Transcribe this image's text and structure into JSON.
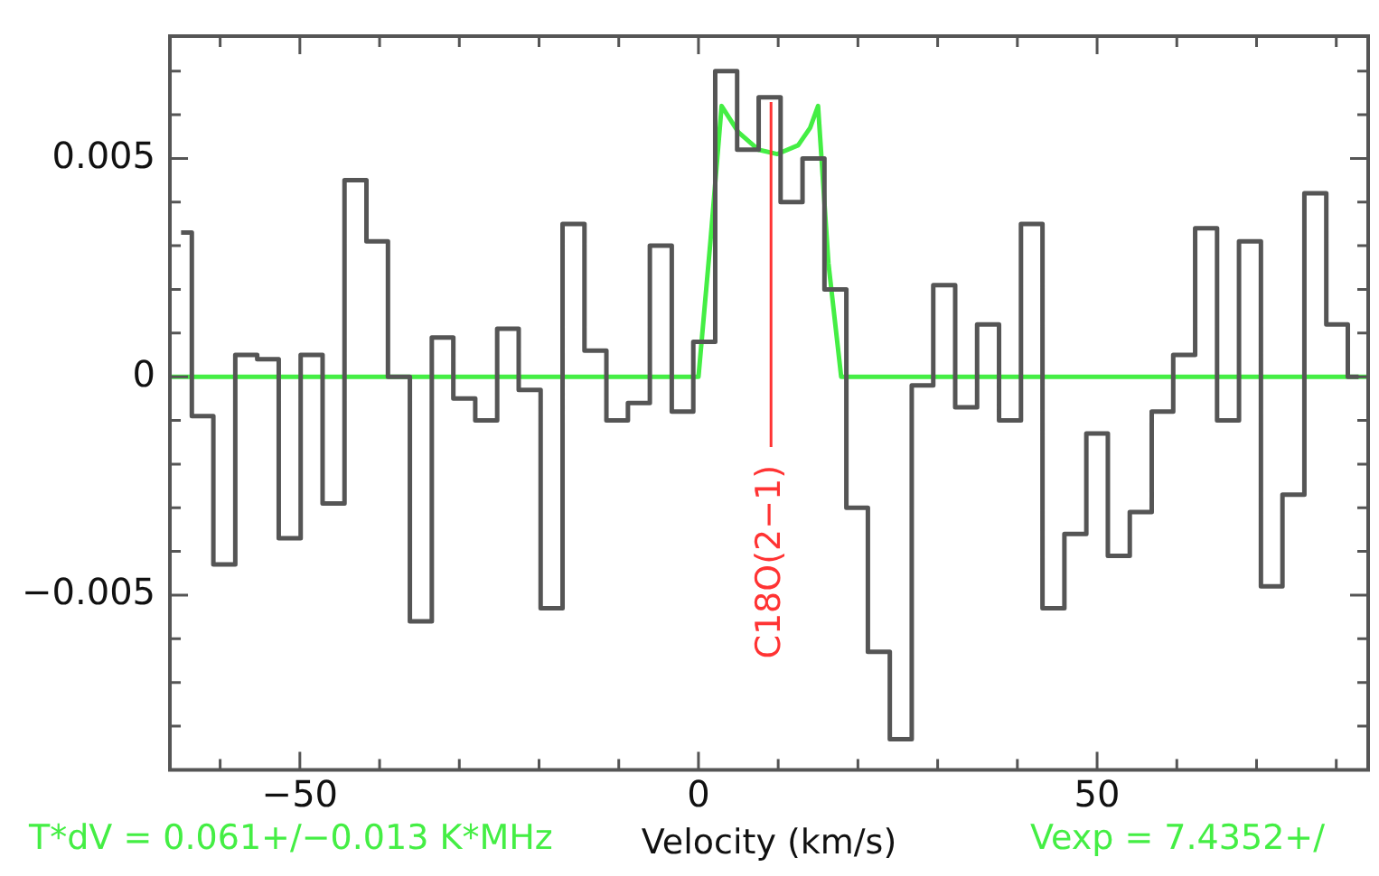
{
  "chart_data": {
    "type": "step",
    "xlabel": "Velocity (km/s)",
    "x": [
      -64.9,
      -62.2,
      -59.5,
      -56.7,
      -54.0,
      -51.3,
      -48.5,
      -45.8,
      -43.0,
      -40.3,
      -37.6,
      -34.8,
      -32.1,
      -29.4,
      -26.6,
      -23.9,
      -21.2,
      -18.4,
      -15.7,
      -12.9,
      -10.2,
      -7.5,
      -4.7,
      -2.0,
      0.7,
      3.5,
      6.2,
      8.9,
      11.7,
      14.4,
      17.2,
      19.9,
      22.6,
      25.4,
      28.1,
      30.8,
      33.6,
      36.3,
      39.1,
      41.8,
      44.5,
      47.3,
      50.0,
      52.7,
      55.5,
      58.2,
      60.9,
      63.7,
      66.4,
      69.2,
      71.9,
      74.6,
      77.4,
      80.1,
      82.8
    ],
    "series": [
      {
        "color": "#555555",
        "values": [
          0.0033,
          -0.0009,
          -0.0043,
          0.0005,
          0.0004,
          -0.0037,
          0.0005,
          -0.0029,
          0.0045,
          0.0031,
          0,
          -0.0056,
          0.0009,
          -0.0005,
          -0.001,
          0.0011,
          -0.0003,
          -0.0053,
          0.0035,
          0.0006,
          -0.001,
          -0.0006,
          0.003,
          -0.0008,
          0.0008,
          0.007,
          0.0052,
          0.0064,
          0.004,
          0.005,
          0.002,
          -0.003,
          -0.0063,
          -0.0083,
          -0.0002,
          0.0021,
          -0.0007,
          0.0012,
          -0.001,
          0.0035,
          -0.0053,
          -0.0036,
          -0.0013,
          -0.0041,
          -0.0031,
          -0.0008,
          0.0005,
          0.0034,
          -0.001,
          0.0031,
          -0.0048,
          -0.0027,
          0.0042,
          0.0012,
          0
        ]
      },
      {
        "type": "line",
        "color": "#44ee44",
        "x": [
          -66.3,
          0,
          1.5,
          2.9,
          5,
          7.5,
          9.9,
          12.5,
          14,
          15,
          16.3,
          17.9,
          84
        ],
        "values": [
          0,
          0,
          0.0031,
          0.0062,
          0.0056,
          0.0052,
          0.0051,
          0.0053,
          0.0057,
          0.0062,
          0.0026,
          0,
          0
        ]
      }
    ],
    "xlim": [
      -66.3,
      84.0
    ],
    "xticks": [
      {
        "value": -60,
        "label": null
      },
      -50,
      {
        "value": -40,
        "label": null
      },
      {
        "value": -30,
        "label": null
      },
      {
        "value": -20,
        "label": null
      },
      {
        "value": -10,
        "label": null
      },
      0,
      {
        "value": 10,
        "label": null
      },
      {
        "value": 20,
        "label": null
      },
      {
        "value": 30,
        "label": null
      },
      {
        "value": 40,
        "label": null
      },
      50,
      {
        "value": 60,
        "label": null
      },
      {
        "value": 70,
        "label": null
      },
      {
        "value": 80,
        "label": null
      }
    ],
    "ylim": [
      -0.009,
      0.0078
    ],
    "yticks": [
      {
        "value": -0.008,
        "label": null
      },
      {
        "value": -0.007,
        "label": null
      },
      {
        "value": -0.006,
        "label": null
      },
      -0.005,
      {
        "value": -0.004,
        "label": null
      },
      {
        "value": -0.003,
        "label": null
      },
      {
        "value": -0.002,
        "label": null
      },
      {
        "value": -0.001,
        "label": null
      },
      0,
      {
        "value": 0.001,
        "label": null
      },
      {
        "value": 0.002,
        "label": null
      },
      {
        "value": 0.003,
        "label": null
      },
      {
        "value": 0.004,
        "label": null
      },
      0.005,
      {
        "value": 0.006,
        "label": null
      },
      {
        "value": 0.007,
        "label": null
      }
    ],
    "ref_lines": [
      {
        "axis": "x",
        "value": 9.1,
        "label": "C18O(2−1)",
        "color": "#ff3333"
      }
    ],
    "annotations": [
      "T*dV = 0.061+/−0.013 K*MHz",
      "Vexp = 7.4352+/"
    ],
    "grid": false,
    "legend": false,
    "marker": "none"
  }
}
